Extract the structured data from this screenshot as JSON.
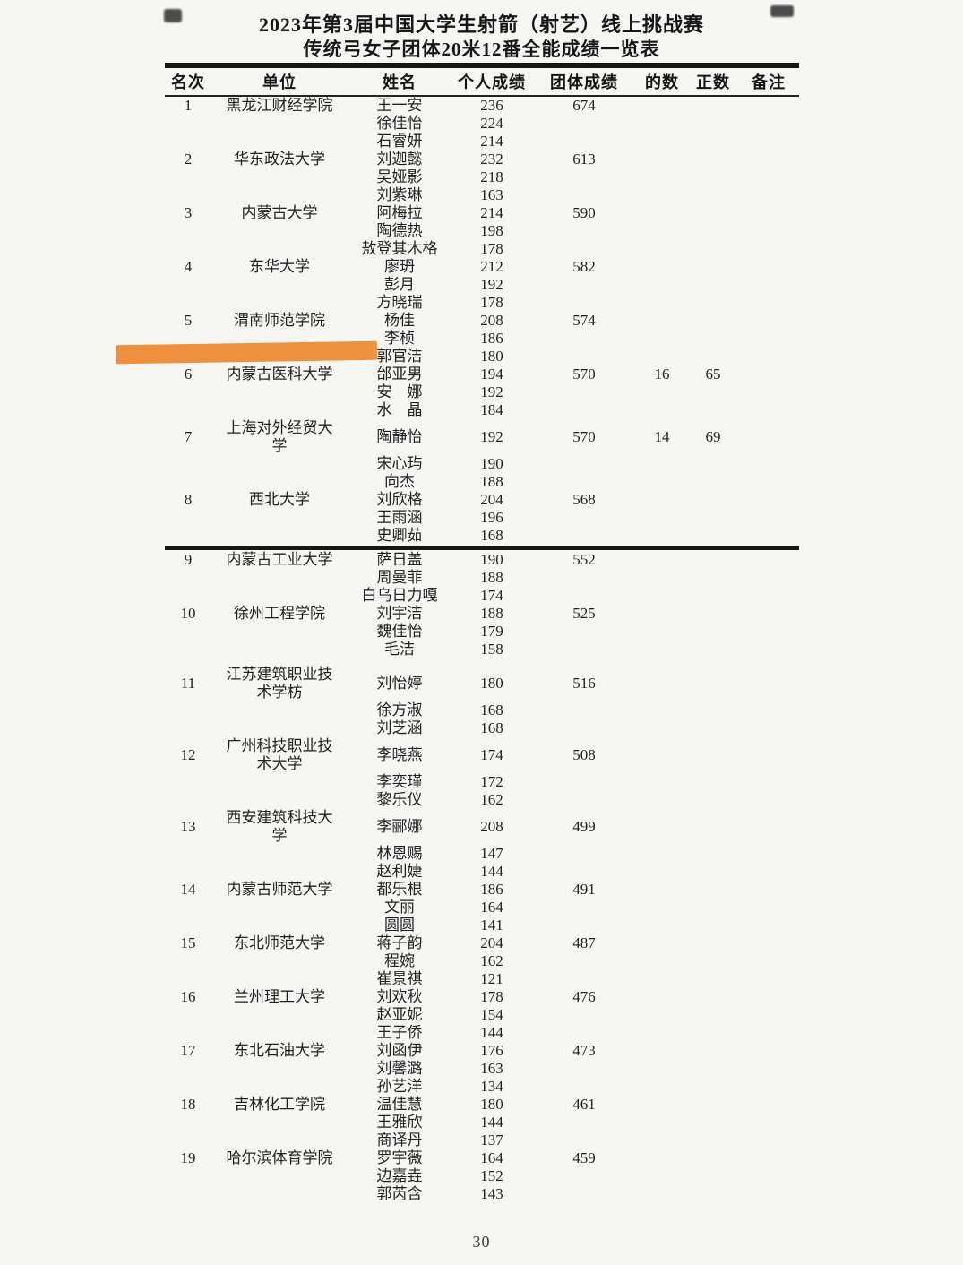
{
  "page": {
    "title_line1": "2023年第3届中国大学生射箭（射艺）线上挑战赛",
    "title_line2": "传统弓女子团体20米12番全能成绩一览表",
    "page_number": "30",
    "highlight_color": "#ED8A33",
    "text_color": "#1e1e1e"
  },
  "table": {
    "headers": [
      "名次",
      "单位",
      "姓名",
      "个人成绩",
      "团体成绩",
      "的数",
      "正数",
      "备注"
    ],
    "separator_after_rank": "8",
    "groups": [
      {
        "rank": "1",
        "unit_lines": [
          "黑龙江财经学院"
        ],
        "team": "674",
        "de": "",
        "zheng": "",
        "note": "",
        "members": [
          {
            "name": "王一安",
            "score": "236"
          },
          {
            "name": "徐佳怡",
            "score": "224"
          },
          {
            "name": "石睿妍",
            "score": "214"
          }
        ]
      },
      {
        "rank": "2",
        "unit_lines": [
          "华东政法大学"
        ],
        "team": "613",
        "de": "",
        "zheng": "",
        "note": "",
        "members": [
          {
            "name": "刘迦懿",
            "score": "232"
          },
          {
            "name": "吴娅影",
            "score": "218"
          },
          {
            "name": "刘紫琳",
            "score": "163"
          }
        ]
      },
      {
        "rank": "3",
        "unit_lines": [
          "内蒙古大学"
        ],
        "team": "590",
        "de": "",
        "zheng": "",
        "note": "",
        "members": [
          {
            "name": "阿梅拉",
            "score": "214"
          },
          {
            "name": "陶德热",
            "score": "198"
          },
          {
            "name": "敖登其木格",
            "score": "178"
          }
        ]
      },
      {
        "rank": "4",
        "unit_lines": [
          "东华大学"
        ],
        "team": "582",
        "de": "",
        "zheng": "",
        "note": "",
        "members": [
          {
            "name": "廖玬",
            "score": "212"
          },
          {
            "name": "彭月",
            "score": "192"
          },
          {
            "name": "方晓瑞",
            "score": "178"
          }
        ]
      },
      {
        "rank": "5",
        "unit_lines": [
          "渭南师范学院"
        ],
        "team": "574",
        "de": "",
        "zheng": "",
        "note": "",
        "members": [
          {
            "name": "杨佳",
            "score": "208"
          },
          {
            "name": "李桢",
            "score": "186"
          },
          {
            "name": "郭官洁",
            "score": "180"
          }
        ]
      },
      {
        "rank": "6",
        "unit_lines": [
          "内蒙古医科大学"
        ],
        "team": "570",
        "de": "16",
        "zheng": "65",
        "note": "",
        "members": [
          {
            "name": "邰亚男",
            "score": "194"
          },
          {
            "name": "安　娜",
            "score": "192"
          },
          {
            "name": "水　晶",
            "score": "184"
          }
        ]
      },
      {
        "rank": "7",
        "unit_lines": [
          "上海对外经贸大",
          "学"
        ],
        "team": "570",
        "de": "14",
        "zheng": "69",
        "note": "",
        "members": [
          {
            "name": "陶静怡",
            "score": "192"
          },
          {
            "name": "宋心玙",
            "score": "190"
          },
          {
            "name": "向杰",
            "score": "188"
          }
        ]
      },
      {
        "rank": "8",
        "unit_lines": [
          "西北大学"
        ],
        "team": "568",
        "de": "",
        "zheng": "",
        "note": "",
        "members": [
          {
            "name": "刘欣格",
            "score": "204"
          },
          {
            "name": "王雨涵",
            "score": "196"
          },
          {
            "name": "史卿茹",
            "score": "168"
          }
        ]
      },
      {
        "rank": "9",
        "unit_lines": [
          "内蒙古工业大学"
        ],
        "team": "552",
        "de": "",
        "zheng": "",
        "note": "",
        "members": [
          {
            "name": "萨日盖",
            "score": "190"
          },
          {
            "name": "周曼菲",
            "score": "188"
          },
          {
            "name": "白乌日力嘎",
            "score": "174"
          }
        ]
      },
      {
        "rank": "10",
        "unit_lines": [
          "徐州工程学院"
        ],
        "team": "525",
        "de": "",
        "zheng": "",
        "note": "",
        "members": [
          {
            "name": "刘宇洁",
            "score": "188"
          },
          {
            "name": "魏佳怡",
            "score": "179"
          },
          {
            "name": "毛洁",
            "score": "158"
          }
        ]
      },
      {
        "rank": "11",
        "unit_lines": [
          "江苏建筑职业技",
          "术学枋"
        ],
        "team": "516",
        "de": "",
        "zheng": "",
        "note": "",
        "gap_before": 8,
        "members": [
          {
            "name": "刘怡婷",
            "score": "180"
          },
          {
            "name": "徐方淑",
            "score": "168"
          },
          {
            "name": "刘芝涵",
            "score": "168"
          }
        ]
      },
      {
        "rank": "12",
        "unit_lines": [
          "广州科技职业技",
          "术大学"
        ],
        "team": "508",
        "de": "",
        "zheng": "",
        "note": "",
        "members": [
          {
            "name": "李晓燕",
            "score": "174"
          },
          {
            "name": "李奕瑾",
            "score": "172"
          },
          {
            "name": "黎乐仪",
            "score": "162"
          }
        ]
      },
      {
        "rank": "13",
        "unit_lines": [
          "西安建筑科技大",
          "学"
        ],
        "team": "499",
        "de": "",
        "zheng": "",
        "note": "",
        "members": [
          {
            "name": "李郦娜",
            "score": "208"
          },
          {
            "name": "林恩赐",
            "score": "147"
          },
          {
            "name": "赵利婕",
            "score": "144"
          }
        ]
      },
      {
        "rank": "14",
        "unit_lines": [
          "内蒙古师范大学"
        ],
        "team": "491",
        "de": "",
        "zheng": "",
        "note": "",
        "members": [
          {
            "name": "都乐根",
            "score": "186"
          },
          {
            "name": "文丽",
            "score": "164"
          },
          {
            "name": "圆圆",
            "score": "141"
          }
        ]
      },
      {
        "rank": "15",
        "unit_lines": [
          "东北师范大学"
        ],
        "team": "487",
        "de": "",
        "zheng": "",
        "note": "",
        "members": [
          {
            "name": "蒋子韵",
            "score": "204"
          },
          {
            "name": "程婉",
            "score": "162"
          },
          {
            "name": "崔景祺",
            "score": "121"
          }
        ]
      },
      {
        "rank": "16",
        "unit_lines": [
          "兰州理工大学"
        ],
        "team": "476",
        "de": "",
        "zheng": "",
        "note": "",
        "members": [
          {
            "name": "刘欢秋",
            "score": "178"
          },
          {
            "name": "赵亚妮",
            "score": "154"
          },
          {
            "name": "王子侨",
            "score": "144"
          }
        ]
      },
      {
        "rank": "17",
        "unit_lines": [
          "东北石油大学"
        ],
        "team": "473",
        "de": "",
        "zheng": "",
        "note": "",
        "members": [
          {
            "name": "刘函伊",
            "score": "176"
          },
          {
            "name": "刘馨潞",
            "score": "163"
          },
          {
            "name": "孙艺洋",
            "score": "134"
          }
        ]
      },
      {
        "rank": "18",
        "unit_lines": [
          "吉林化工学院"
        ],
        "team": "461",
        "de": "",
        "zheng": "",
        "note": "",
        "members": [
          {
            "name": "温佳慧",
            "score": "180"
          },
          {
            "name": "王雅欣",
            "score": "144"
          },
          {
            "name": "商译丹",
            "score": "137"
          }
        ]
      },
      {
        "rank": "19",
        "unit_lines": [
          "哈尔滨体育学院"
        ],
        "team": "459",
        "de": "",
        "zheng": "",
        "note": "",
        "members": [
          {
            "name": "罗宇薇",
            "score": "164"
          },
          {
            "name": "边嘉垚",
            "score": "152"
          },
          {
            "name": "郭芮含",
            "score": "143"
          }
        ]
      }
    ]
  }
}
